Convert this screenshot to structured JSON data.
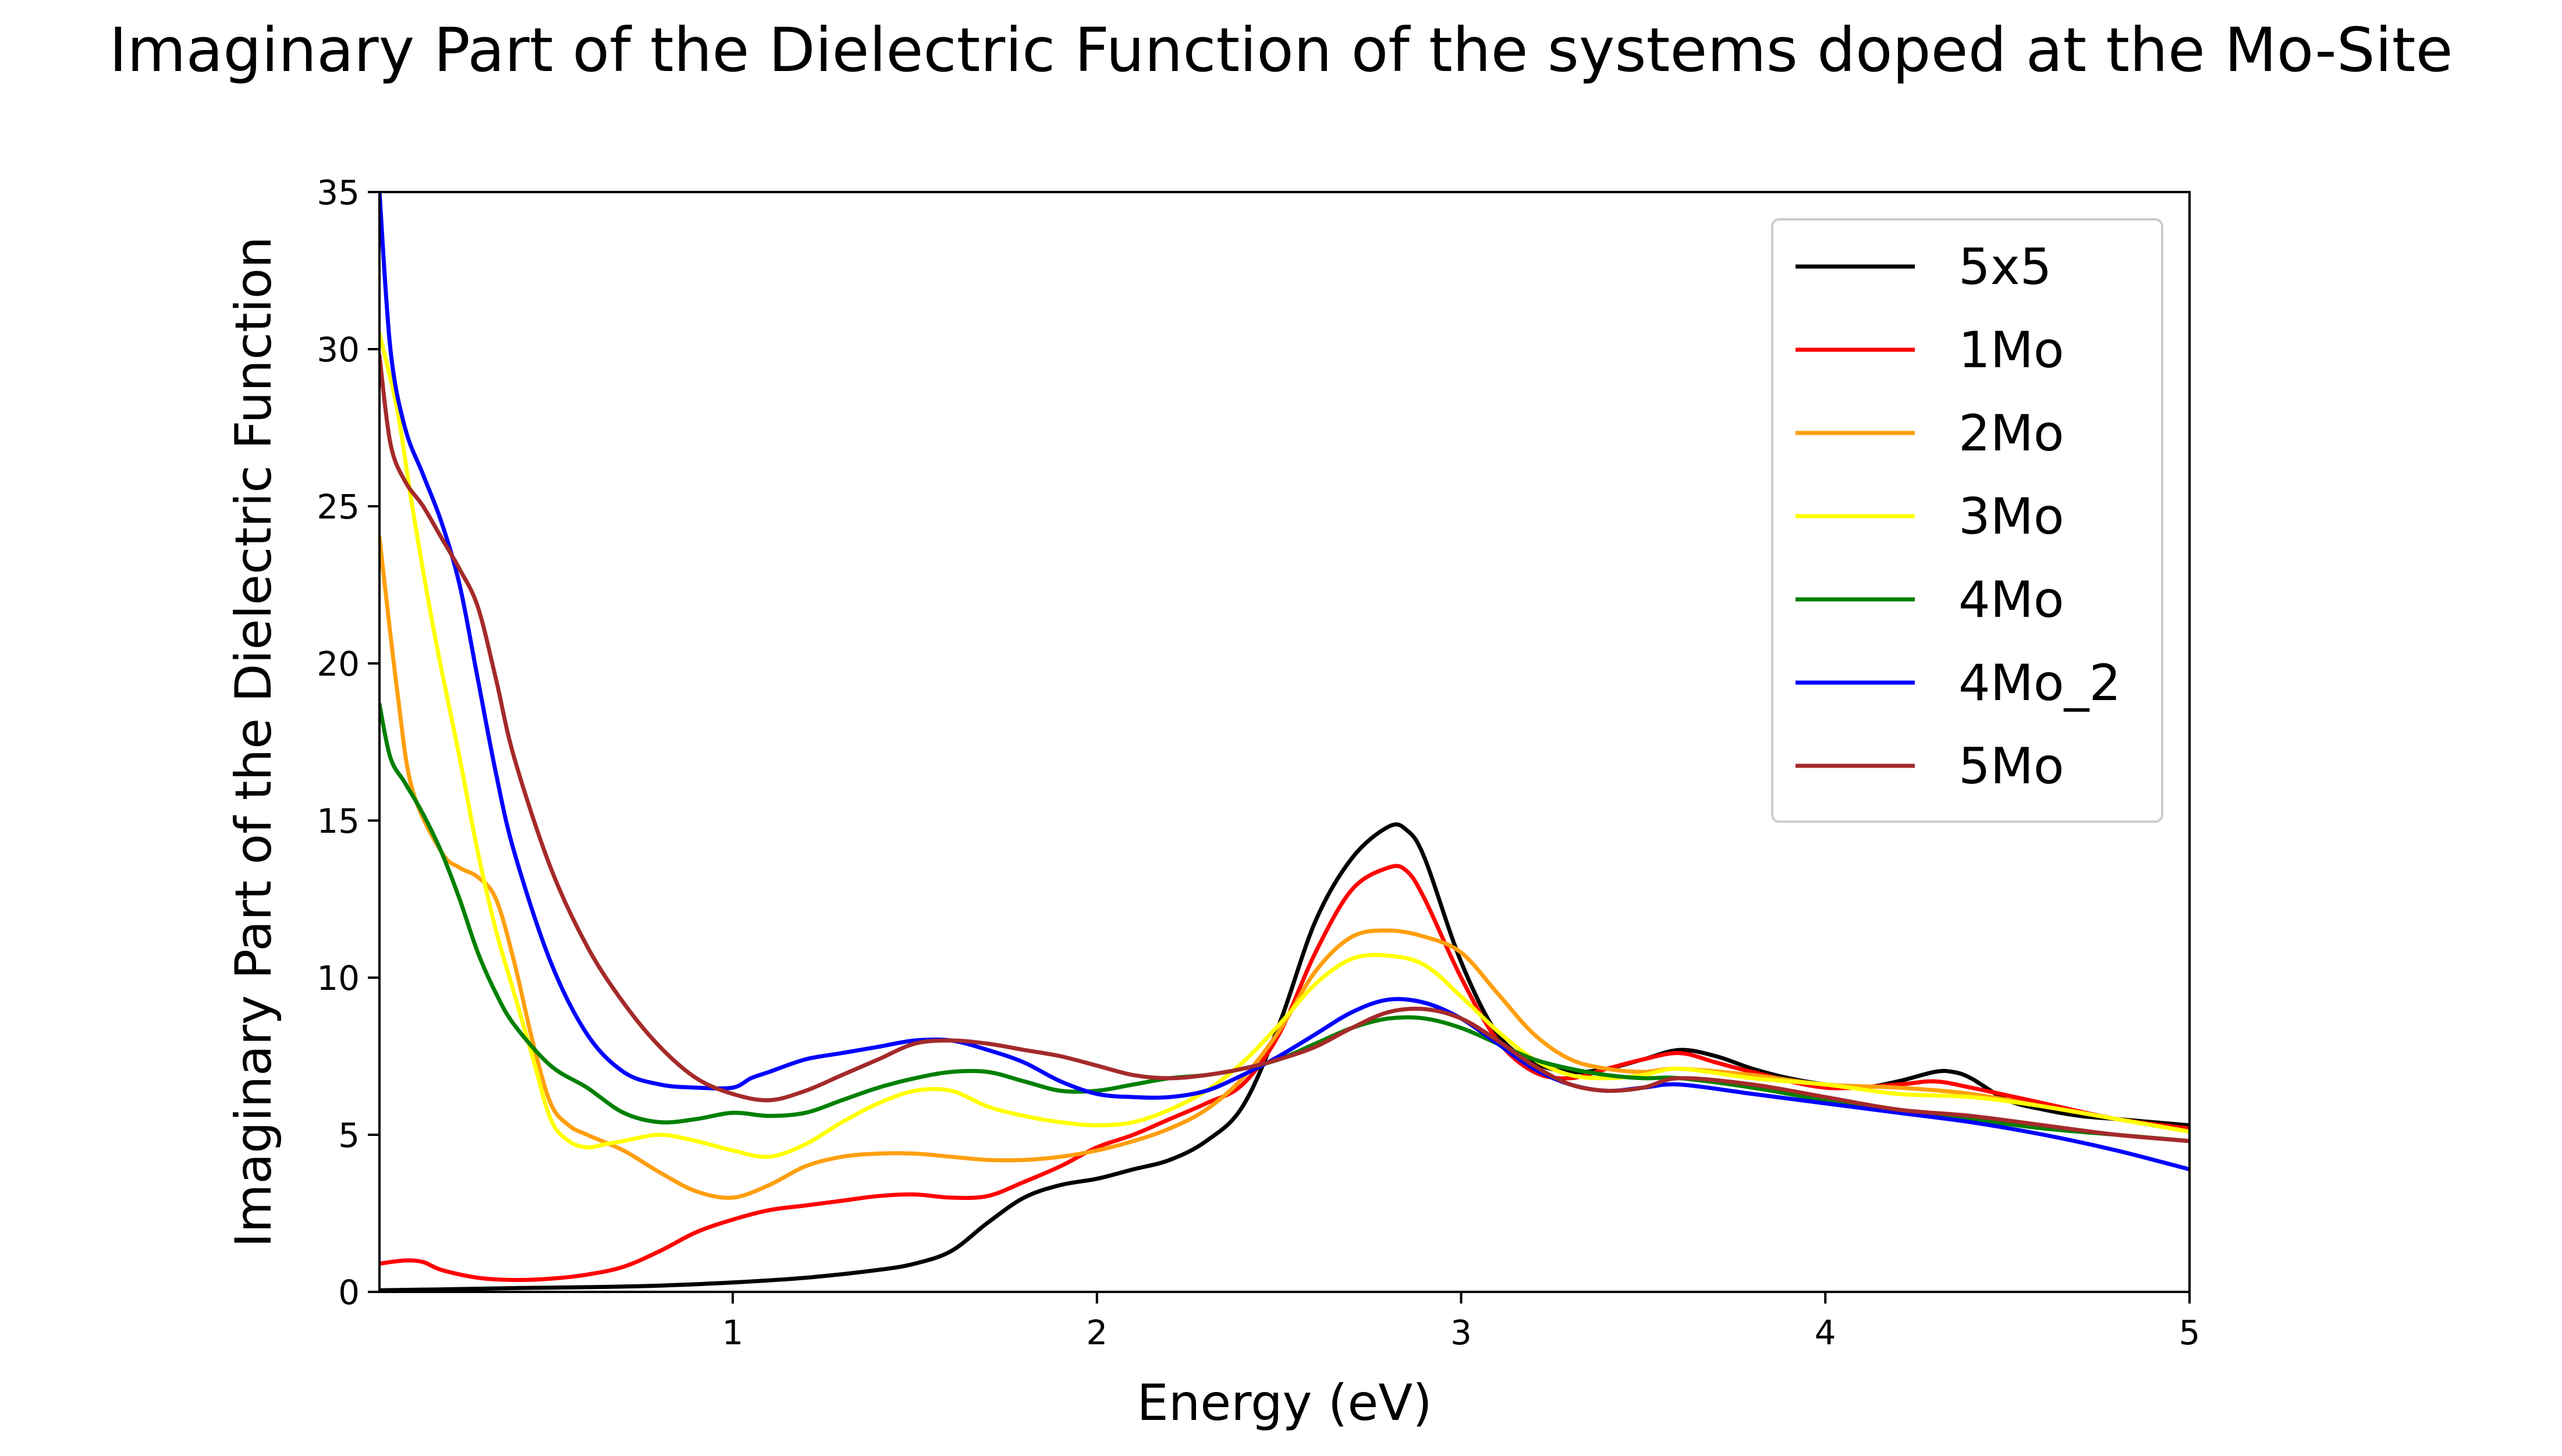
{
  "chart_data": {
    "type": "line",
    "title": "Imaginary Part of the Dielectric Function of the systems doped at the Mo-Site",
    "xlabel": "Energy (eV)",
    "ylabel": "Imaginary Part of the Dielectric Function",
    "xlim": [
      0.03,
      5.0
    ],
    "ylim": [
      0,
      35
    ],
    "xticks": [
      1,
      2,
      3,
      4,
      5
    ],
    "yticks": [
      0,
      5,
      10,
      15,
      20,
      25,
      30,
      35
    ],
    "grid": false,
    "legend_position": "top-right",
    "series": [
      {
        "name": "5x5",
        "color": "#000000",
        "x": [
          0.03,
          0.2,
          0.4,
          0.6,
          0.8,
          1.0,
          1.2,
          1.4,
          1.5,
          1.6,
          1.7,
          1.8,
          1.9,
          2.0,
          2.1,
          2.2,
          2.3,
          2.4,
          2.5,
          2.6,
          2.7,
          2.8,
          2.85,
          2.9,
          3.0,
          3.1,
          3.2,
          3.3,
          3.4,
          3.5,
          3.6,
          3.7,
          3.8,
          3.9,
          4.0,
          4.1,
          4.2,
          4.3,
          4.35,
          4.4,
          4.5,
          4.6,
          4.7,
          4.8,
          5.0
        ],
        "y": [
          0.05,
          0.08,
          0.12,
          0.15,
          0.2,
          0.3,
          0.45,
          0.7,
          0.9,
          1.3,
          2.2,
          3.0,
          3.4,
          3.6,
          3.9,
          4.2,
          4.8,
          5.9,
          8.5,
          11.8,
          13.8,
          14.8,
          14.7,
          13.8,
          10.5,
          8.2,
          7.3,
          7.0,
          7.1,
          7.4,
          7.7,
          7.5,
          7.1,
          6.8,
          6.6,
          6.5,
          6.7,
          7.0,
          7.0,
          6.8,
          6.1,
          5.8,
          5.6,
          5.5,
          5.3
        ]
      },
      {
        "name": "1Mo",
        "color": "#ff0000",
        "x": [
          0.03,
          0.1,
          0.15,
          0.2,
          0.3,
          0.4,
          0.5,
          0.6,
          0.7,
          0.8,
          0.9,
          1.0,
          1.1,
          1.2,
          1.3,
          1.4,
          1.5,
          1.6,
          1.7,
          1.8,
          1.9,
          2.0,
          2.1,
          2.2,
          2.3,
          2.4,
          2.5,
          2.6,
          2.7,
          2.8,
          2.85,
          2.9,
          3.0,
          3.1,
          3.2,
          3.3,
          3.4,
          3.5,
          3.6,
          3.7,
          3.8,
          4.0,
          4.2,
          4.3,
          4.4,
          4.6,
          4.8,
          5.0
        ],
        "y": [
          0.9,
          1.0,
          0.95,
          0.7,
          0.45,
          0.38,
          0.42,
          0.55,
          0.8,
          1.3,
          1.9,
          2.3,
          2.6,
          2.75,
          2.9,
          3.05,
          3.1,
          3.0,
          3.05,
          3.5,
          4.0,
          4.6,
          5.0,
          5.5,
          6.0,
          6.6,
          8.2,
          10.8,
          12.8,
          13.5,
          13.4,
          12.5,
          10.0,
          8.0,
          7.0,
          6.8,
          7.1,
          7.4,
          7.6,
          7.3,
          7.0,
          6.5,
          6.6,
          6.7,
          6.5,
          6.0,
          5.5,
          5.2
        ]
      },
      {
        "name": "2Mo",
        "color": "#ff9f0f",
        "x": [
          0.03,
          0.08,
          0.12,
          0.2,
          0.25,
          0.3,
          0.35,
          0.4,
          0.45,
          0.5,
          0.55,
          0.6,
          0.7,
          0.8,
          0.9,
          1.0,
          1.1,
          1.2,
          1.3,
          1.4,
          1.5,
          1.6,
          1.7,
          1.8,
          1.9,
          2.0,
          2.1,
          2.2,
          2.3,
          2.4,
          2.5,
          2.6,
          2.7,
          2.8,
          2.9,
          3.0,
          3.1,
          3.2,
          3.3,
          3.4,
          3.5,
          3.6,
          3.8,
          4.0,
          4.2,
          4.4,
          4.6,
          4.8,
          5.0
        ],
        "y": [
          24.0,
          19.0,
          16.0,
          14.0,
          13.5,
          13.2,
          12.5,
          10.5,
          8.0,
          6.0,
          5.3,
          5.0,
          4.5,
          3.8,
          3.2,
          3.0,
          3.4,
          4.0,
          4.3,
          4.4,
          4.4,
          4.3,
          4.2,
          4.2,
          4.3,
          4.5,
          4.8,
          5.2,
          5.8,
          6.8,
          8.3,
          10.2,
          11.3,
          11.5,
          11.3,
          10.8,
          9.5,
          8.2,
          7.4,
          7.1,
          7.0,
          7.1,
          6.9,
          6.6,
          6.5,
          6.3,
          5.9,
          5.5,
          5.1
        ]
      },
      {
        "name": "3Mo",
        "color": "#ffff00",
        "x": [
          0.03,
          0.08,
          0.12,
          0.18,
          0.25,
          0.3,
          0.35,
          0.4,
          0.45,
          0.5,
          0.55,
          0.6,
          0.65,
          0.7,
          0.8,
          0.9,
          1.0,
          1.1,
          1.2,
          1.3,
          1.4,
          1.5,
          1.6,
          1.7,
          1.8,
          1.9,
          2.0,
          2.1,
          2.2,
          2.3,
          2.4,
          2.5,
          2.6,
          2.7,
          2.8,
          2.9,
          3.0,
          3.1,
          3.2,
          3.3,
          3.4,
          3.5,
          3.6,
          3.8,
          4.0,
          4.2,
          4.4,
          4.6,
          4.8,
          5.0
        ],
        "y": [
          30.5,
          28.0,
          25.0,
          21.0,
          17.0,
          14.0,
          11.5,
          9.5,
          7.5,
          5.5,
          4.8,
          4.6,
          4.7,
          4.8,
          5.0,
          4.8,
          4.5,
          4.3,
          4.7,
          5.4,
          6.0,
          6.4,
          6.4,
          5.9,
          5.6,
          5.4,
          5.3,
          5.4,
          5.8,
          6.4,
          7.3,
          8.5,
          9.8,
          10.6,
          10.7,
          10.4,
          9.4,
          8.3,
          7.4,
          6.9,
          6.8,
          6.9,
          7.1,
          6.8,
          6.6,
          6.3,
          6.2,
          5.9,
          5.5,
          5.1
        ]
      },
      {
        "name": "4Mo",
        "color": "#008000",
        "x": [
          0.03,
          0.06,
          0.1,
          0.15,
          0.2,
          0.25,
          0.3,
          0.35,
          0.4,
          0.5,
          0.6,
          0.7,
          0.8,
          0.9,
          1.0,
          1.1,
          1.2,
          1.3,
          1.4,
          1.5,
          1.6,
          1.7,
          1.8,
          1.9,
          2.0,
          2.1,
          2.2,
          2.3,
          2.4,
          2.5,
          2.6,
          2.7,
          2.8,
          2.9,
          3.0,
          3.1,
          3.2,
          3.3,
          3.4,
          3.5,
          3.6,
          3.8,
          4.0,
          4.2,
          4.4,
          4.6,
          4.8,
          5.0
        ],
        "y": [
          18.7,
          17.0,
          16.2,
          15.2,
          14.0,
          12.5,
          10.8,
          9.5,
          8.5,
          7.2,
          6.5,
          5.7,
          5.4,
          5.5,
          5.7,
          5.6,
          5.7,
          6.1,
          6.5,
          6.8,
          7.0,
          7.0,
          6.7,
          6.4,
          6.4,
          6.6,
          6.8,
          6.9,
          7.1,
          7.4,
          7.9,
          8.4,
          8.7,
          8.7,
          8.4,
          7.9,
          7.4,
          7.1,
          6.9,
          6.8,
          6.8,
          6.5,
          6.1,
          5.8,
          5.5,
          5.2,
          5.0,
          4.8
        ]
      },
      {
        "name": "4Mo_2",
        "color": "#0000ff",
        "x": [
          0.03,
          0.06,
          0.1,
          0.15,
          0.2,
          0.25,
          0.3,
          0.35,
          0.4,
          0.5,
          0.6,
          0.7,
          0.8,
          0.9,
          1.0,
          1.05,
          1.1,
          1.2,
          1.3,
          1.4,
          1.5,
          1.6,
          1.7,
          1.8,
          1.9,
          2.0,
          2.1,
          2.2,
          2.3,
          2.4,
          2.5,
          2.6,
          2.7,
          2.8,
          2.9,
          3.0,
          3.1,
          3.2,
          3.3,
          3.4,
          3.5,
          3.6,
          3.8,
          4.0,
          4.2,
          4.4,
          4.6,
          4.8,
          5.0
        ],
        "y": [
          35.0,
          30.0,
          27.5,
          26.0,
          24.5,
          22.5,
          19.5,
          16.5,
          14.0,
          10.5,
          8.2,
          7.0,
          6.6,
          6.5,
          6.5,
          6.8,
          7.0,
          7.4,
          7.6,
          7.8,
          8.0,
          8.0,
          7.7,
          7.3,
          6.7,
          6.3,
          6.2,
          6.2,
          6.4,
          6.9,
          7.5,
          8.2,
          8.9,
          9.3,
          9.2,
          8.7,
          7.9,
          7.1,
          6.6,
          6.4,
          6.5,
          6.6,
          6.3,
          6.0,
          5.7,
          5.4,
          5.0,
          4.5,
          3.9
        ]
      },
      {
        "name": "5Mo",
        "color": "#a52a2a",
        "x": [
          0.03,
          0.06,
          0.1,
          0.15,
          0.2,
          0.25,
          0.3,
          0.35,
          0.4,
          0.5,
          0.6,
          0.7,
          0.8,
          0.9,
          1.0,
          1.1,
          1.2,
          1.3,
          1.4,
          1.5,
          1.6,
          1.7,
          1.8,
          1.9,
          2.0,
          2.1,
          2.2,
          2.3,
          2.4,
          2.5,
          2.6,
          2.7,
          2.8,
          2.9,
          3.0,
          3.1,
          3.2,
          3.3,
          3.4,
          3.5,
          3.6,
          3.8,
          4.0,
          4.2,
          4.4,
          4.6,
          4.8,
          5.0
        ],
        "y": [
          29.8,
          27.0,
          25.8,
          25.0,
          24.0,
          23.0,
          21.8,
          19.5,
          17.0,
          13.5,
          11.0,
          9.2,
          7.8,
          6.8,
          6.3,
          6.1,
          6.4,
          6.9,
          7.4,
          7.9,
          8.0,
          7.9,
          7.7,
          7.5,
          7.2,
          6.9,
          6.8,
          6.9,
          7.1,
          7.4,
          7.8,
          8.4,
          8.9,
          9.0,
          8.7,
          8.0,
          7.2,
          6.6,
          6.4,
          6.5,
          6.8,
          6.6,
          6.2,
          5.8,
          5.6,
          5.3,
          5.0,
          4.8
        ]
      }
    ]
  }
}
